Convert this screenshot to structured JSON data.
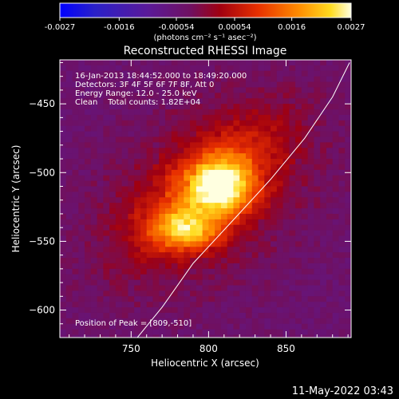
{
  "chart_data": {
    "type": "heatmap",
    "title": "Reconstructed RHESSI Image",
    "xlabel": "Heliocentric X (arcsec)",
    "ylabel": "Heliocentric Y (arcsec)",
    "xlim": [
      704,
      892
    ],
    "ylim": [
      -620,
      -418
    ],
    "x_ticks": [
      750,
      800,
      850
    ],
    "y_ticks": [
      -450,
      -500,
      -550,
      -600
    ],
    "colorbar": {
      "range": [
        -0.0027,
        0.0027
      ],
      "tick_values": [
        -0.0027,
        -0.0016,
        -0.00054,
        0.00054,
        0.0016,
        0.0027
      ],
      "tick_labels": [
        "-0.0027",
        "-0.0016",
        "-0.00054",
        "0.00054",
        "0.0016",
        "0.0027"
      ],
      "unit_label": "(photons cm⁻² s⁻¹ asec⁻²)"
    },
    "annotations": [
      "16-Jan-2013 18:44:52.000 to 18:49:20.000",
      "Detectors: 3F 4F 5F 6F 7F 8F, Att 0",
      "Energy Range: 12.0 - 25.0 keV",
      "Clean    Total counts: 1.82E+04"
    ],
    "peak_label": "Position of Peak = [809,-510]",
    "peak": [
      809,
      -510
    ],
    "limb_curve": [
      [
        754,
        -620
      ],
      [
        770,
        -598
      ],
      [
        790,
        -566
      ],
      [
        818,
        -532
      ],
      [
        840,
        -505
      ],
      [
        862,
        -475
      ],
      [
        880,
        -445
      ],
      [
        891,
        -420
      ]
    ],
    "sources": [
      {
        "x": 808,
        "y": -510,
        "sx": 14,
        "sy": 14,
        "amp": 0.0022
      },
      {
        "x": 785,
        "y": -542,
        "sx": 15,
        "sy": 10,
        "amp": 0.0018
      },
      {
        "x": 800,
        "y": -510,
        "sx": 45,
        "sy": 20,
        "amp": 0.0011,
        "angle": 45
      }
    ]
  },
  "timestamp": "11-May-2022 03:43",
  "colors": {
    "background": "#000000",
    "text": "#ffffff",
    "colormap": [
      "#0000ff",
      "#2222cc",
      "#44228a",
      "#5a2a8a",
      "#6a2a6a",
      "#a01010",
      "#e03000",
      "#ff8000",
      "#ffd000",
      "#ffffc0"
    ]
  }
}
